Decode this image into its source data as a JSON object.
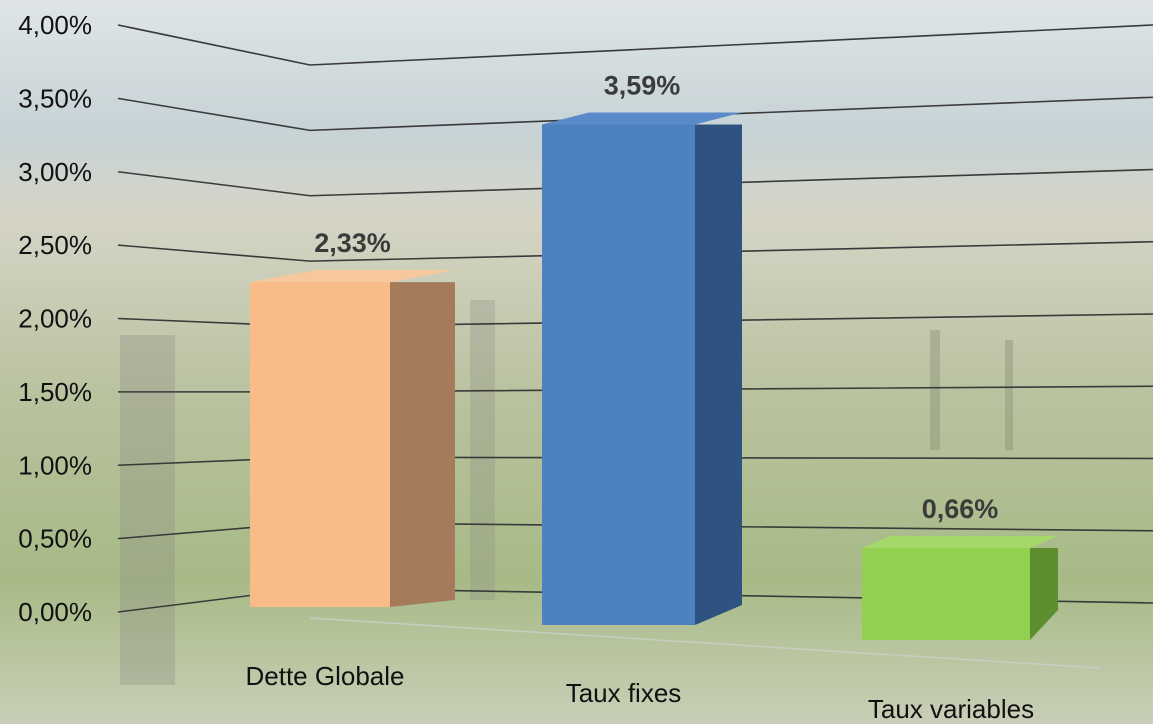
{
  "chart_data": {
    "type": "bar",
    "style": "3d-columns",
    "categories": [
      "Dette Globale",
      "Taux fixes",
      "Taux variables"
    ],
    "values": [
      2.33,
      3.59,
      0.66
    ],
    "data_labels": [
      "2,33%",
      "3,59%",
      "0,66%"
    ],
    "ylim": [
      0,
      4
    ],
    "y_ticks": [
      "0,00%",
      "0,50%",
      "1,00%",
      "1,50%",
      "2,00%",
      "2,50%",
      "3,00%",
      "3,50%",
      "4,00%"
    ],
    "grid": true,
    "legend": "none",
    "title": "",
    "xlabel": "",
    "ylabel": "",
    "colors": {
      "bars_front": [
        "#F9BB88",
        "#4E81BF",
        "#92D050"
      ],
      "bars_side": [
        "#A67B5B",
        "#2F5380",
        "#5E8F2E"
      ],
      "bars_top": [
        "#F7C79E",
        "#5B8ACB",
        "#A4D86A"
      ],
      "gridline": "#3a3a3a",
      "background_sky": "#cfd9dc",
      "background_vines": "#9bb07e"
    }
  }
}
